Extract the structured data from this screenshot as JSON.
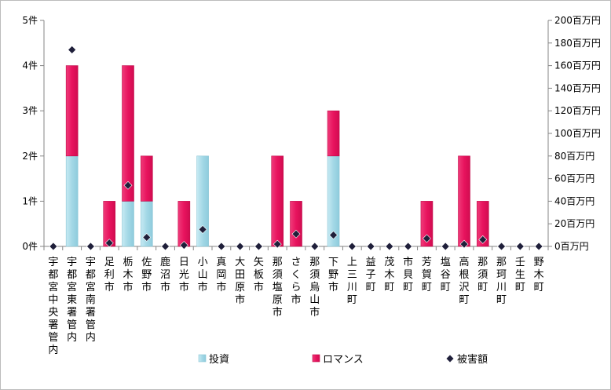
{
  "chart_data": {
    "type": "bar",
    "categories": [
      "宇都宮中央署管内",
      "宇都宮東署管内",
      "宇都宮南署管内",
      "足利市",
      "栃木市",
      "佐野市",
      "鹿沼市",
      "日光市",
      "小山市",
      "真岡市",
      "大田原市",
      "矢板市",
      "那須塩原市",
      "さくら市",
      "那須烏山市",
      "下野市",
      "上三川町",
      "益子町",
      "茂木町",
      "市貝町",
      "芳賀町",
      "塩谷町",
      "高根沢町",
      "那須町",
      "那珂川町",
      "壬生町",
      "野木町"
    ],
    "series": [
      {
        "name": "投資",
        "kind": "bar-stacked",
        "axis": "left",
        "color": "#a9dbe8",
        "values": [
          0,
          2,
          0,
          0,
          1,
          1,
          0,
          0,
          2,
          0,
          0,
          0,
          0,
          0,
          0,
          2,
          0,
          0,
          0,
          0,
          0,
          0,
          0,
          0,
          0,
          0,
          0
        ]
      },
      {
        "name": "ロマンス",
        "kind": "bar-stacked",
        "axis": "left",
        "color": "#e8135e",
        "values": [
          0,
          2,
          0,
          1,
          3,
          1,
          0,
          1,
          0,
          0,
          0,
          0,
          2,
          1,
          0,
          1,
          0,
          0,
          0,
          0,
          1,
          0,
          2,
          1,
          0,
          0,
          0
        ]
      },
      {
        "name": "被害額",
        "kind": "marker",
        "axis": "right",
        "color": "#1f1f3a",
        "values": [
          0,
          174,
          0,
          3,
          54,
          8,
          0,
          1,
          15,
          0,
          0,
          0,
          2,
          11,
          0,
          10,
          0,
          0,
          0,
          0,
          7,
          0,
          2,
          6,
          0,
          0,
          0
        ]
      }
    ],
    "left_axis": {
      "min": 0,
      "max": 5,
      "step": 1,
      "tick_labels": [
        "0件",
        "1件",
        "2件",
        "3件",
        "4件",
        "5件"
      ]
    },
    "right_axis": {
      "min": 0,
      "max": 200,
      "step": 20,
      "tick_labels": [
        "0百万円",
        "20百万円",
        "40百万円",
        "60百万円",
        "80百万円",
        "100百万円",
        "120百万円",
        "140百万円",
        "160百万円",
        "180百万円",
        "200百万円"
      ]
    },
    "grid": false,
    "legend_position": "bottom"
  }
}
